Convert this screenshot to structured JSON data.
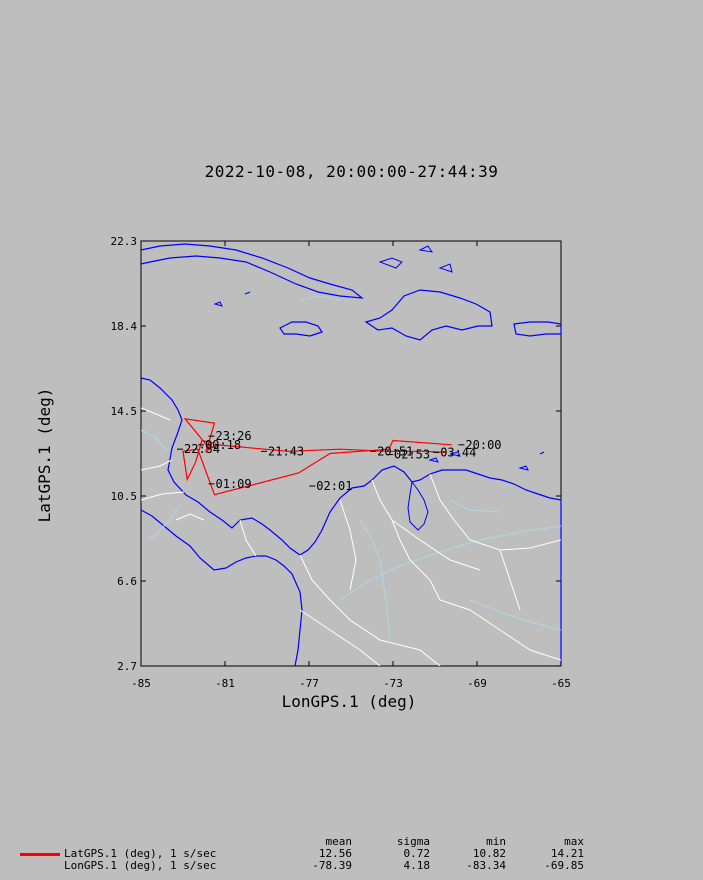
{
  "title": "2022-10-08, 20:00:00-27:44:39",
  "axes": {
    "xlabel": "LonGPS.1 (deg)",
    "ylabel": "LatGPS.1 (deg)",
    "xlim": [
      -85,
      -65
    ],
    "ylim": [
      2.7,
      22.3
    ],
    "xticks": [
      "-85",
      "-81",
      "-77",
      "-73",
      "-69",
      "-65"
    ],
    "yticks": [
      "22.3",
      "18.4",
      "14.5",
      "10.5",
      "6.6",
      "2.7"
    ]
  },
  "colors": {
    "background": "#bebebe",
    "coastline": "#0000ff",
    "borders": "#ffffff",
    "rivers": "#add8e6",
    "track": "#ff0000"
  },
  "track": {
    "points": [
      [
        -70.2,
        12.9
      ],
      [
        -73.0,
        13.1
      ],
      [
        -73.2,
        12.7
      ],
      [
        -76.0,
        12.5
      ],
      [
        -77.5,
        11.6
      ],
      [
        -81.5,
        10.6
      ],
      [
        -82.3,
        12.7
      ],
      [
        -83.0,
        12.6
      ],
      [
        -82.8,
        11.3
      ],
      [
        -82.4,
        12.1
      ],
      [
        -82.1,
        13.1
      ],
      [
        -81.6,
        13.0
      ],
      [
        -81.8,
        12.8
      ],
      [
        -82.9,
        14.1
      ],
      [
        -81.5,
        13.9
      ],
      [
        -81.9,
        12.6
      ],
      [
        -81.4,
        12.9
      ],
      [
        -78.0,
        12.6
      ],
      [
        -75.5,
        12.7
      ],
      [
        -73.3,
        12.6
      ],
      [
        -71.5,
        12.6
      ],
      [
        -70.5,
        12.55
      ]
    ],
    "time_labels": [
      {
        "text": "20:00",
        "lon": -69.6,
        "lat": 12.9
      },
      {
        "text": "20:51",
        "lon": -73.8,
        "lat": 12.6
      },
      {
        "text": "21:43",
        "lon": -79.0,
        "lat": 12.6
      },
      {
        "text": "22:34",
        "lon": -83.0,
        "lat": 12.7
      },
      {
        "text": "23:26",
        "lon": -81.5,
        "lat": 13.3
      },
      {
        "text": "00:18",
        "lon": -82.0,
        "lat": 12.9
      },
      {
        "text": "01:09",
        "lon": -81.5,
        "lat": 11.1
      },
      {
        "text": "02:01",
        "lon": -76.7,
        "lat": 11.0
      },
      {
        "text": "02:53",
        "lon": -73.0,
        "lat": 12.45
      },
      {
        "text": "03:44",
        "lon": -70.8,
        "lat": 12.55
      }
    ]
  },
  "stats": {
    "headers": [
      "mean",
      "sigma",
      "min",
      "max"
    ],
    "rows": [
      {
        "name": "LatGPS.1 (deg), 1 s/sec",
        "mean": "12.56",
        "sigma": "0.72",
        "min": "10.82",
        "max": "14.21"
      },
      {
        "name": "LonGPS.1 (deg), 1 s/sec",
        "mean": "-78.39",
        "sigma": "4.18",
        "min": "-83.34",
        "max": "-69.85"
      }
    ]
  }
}
